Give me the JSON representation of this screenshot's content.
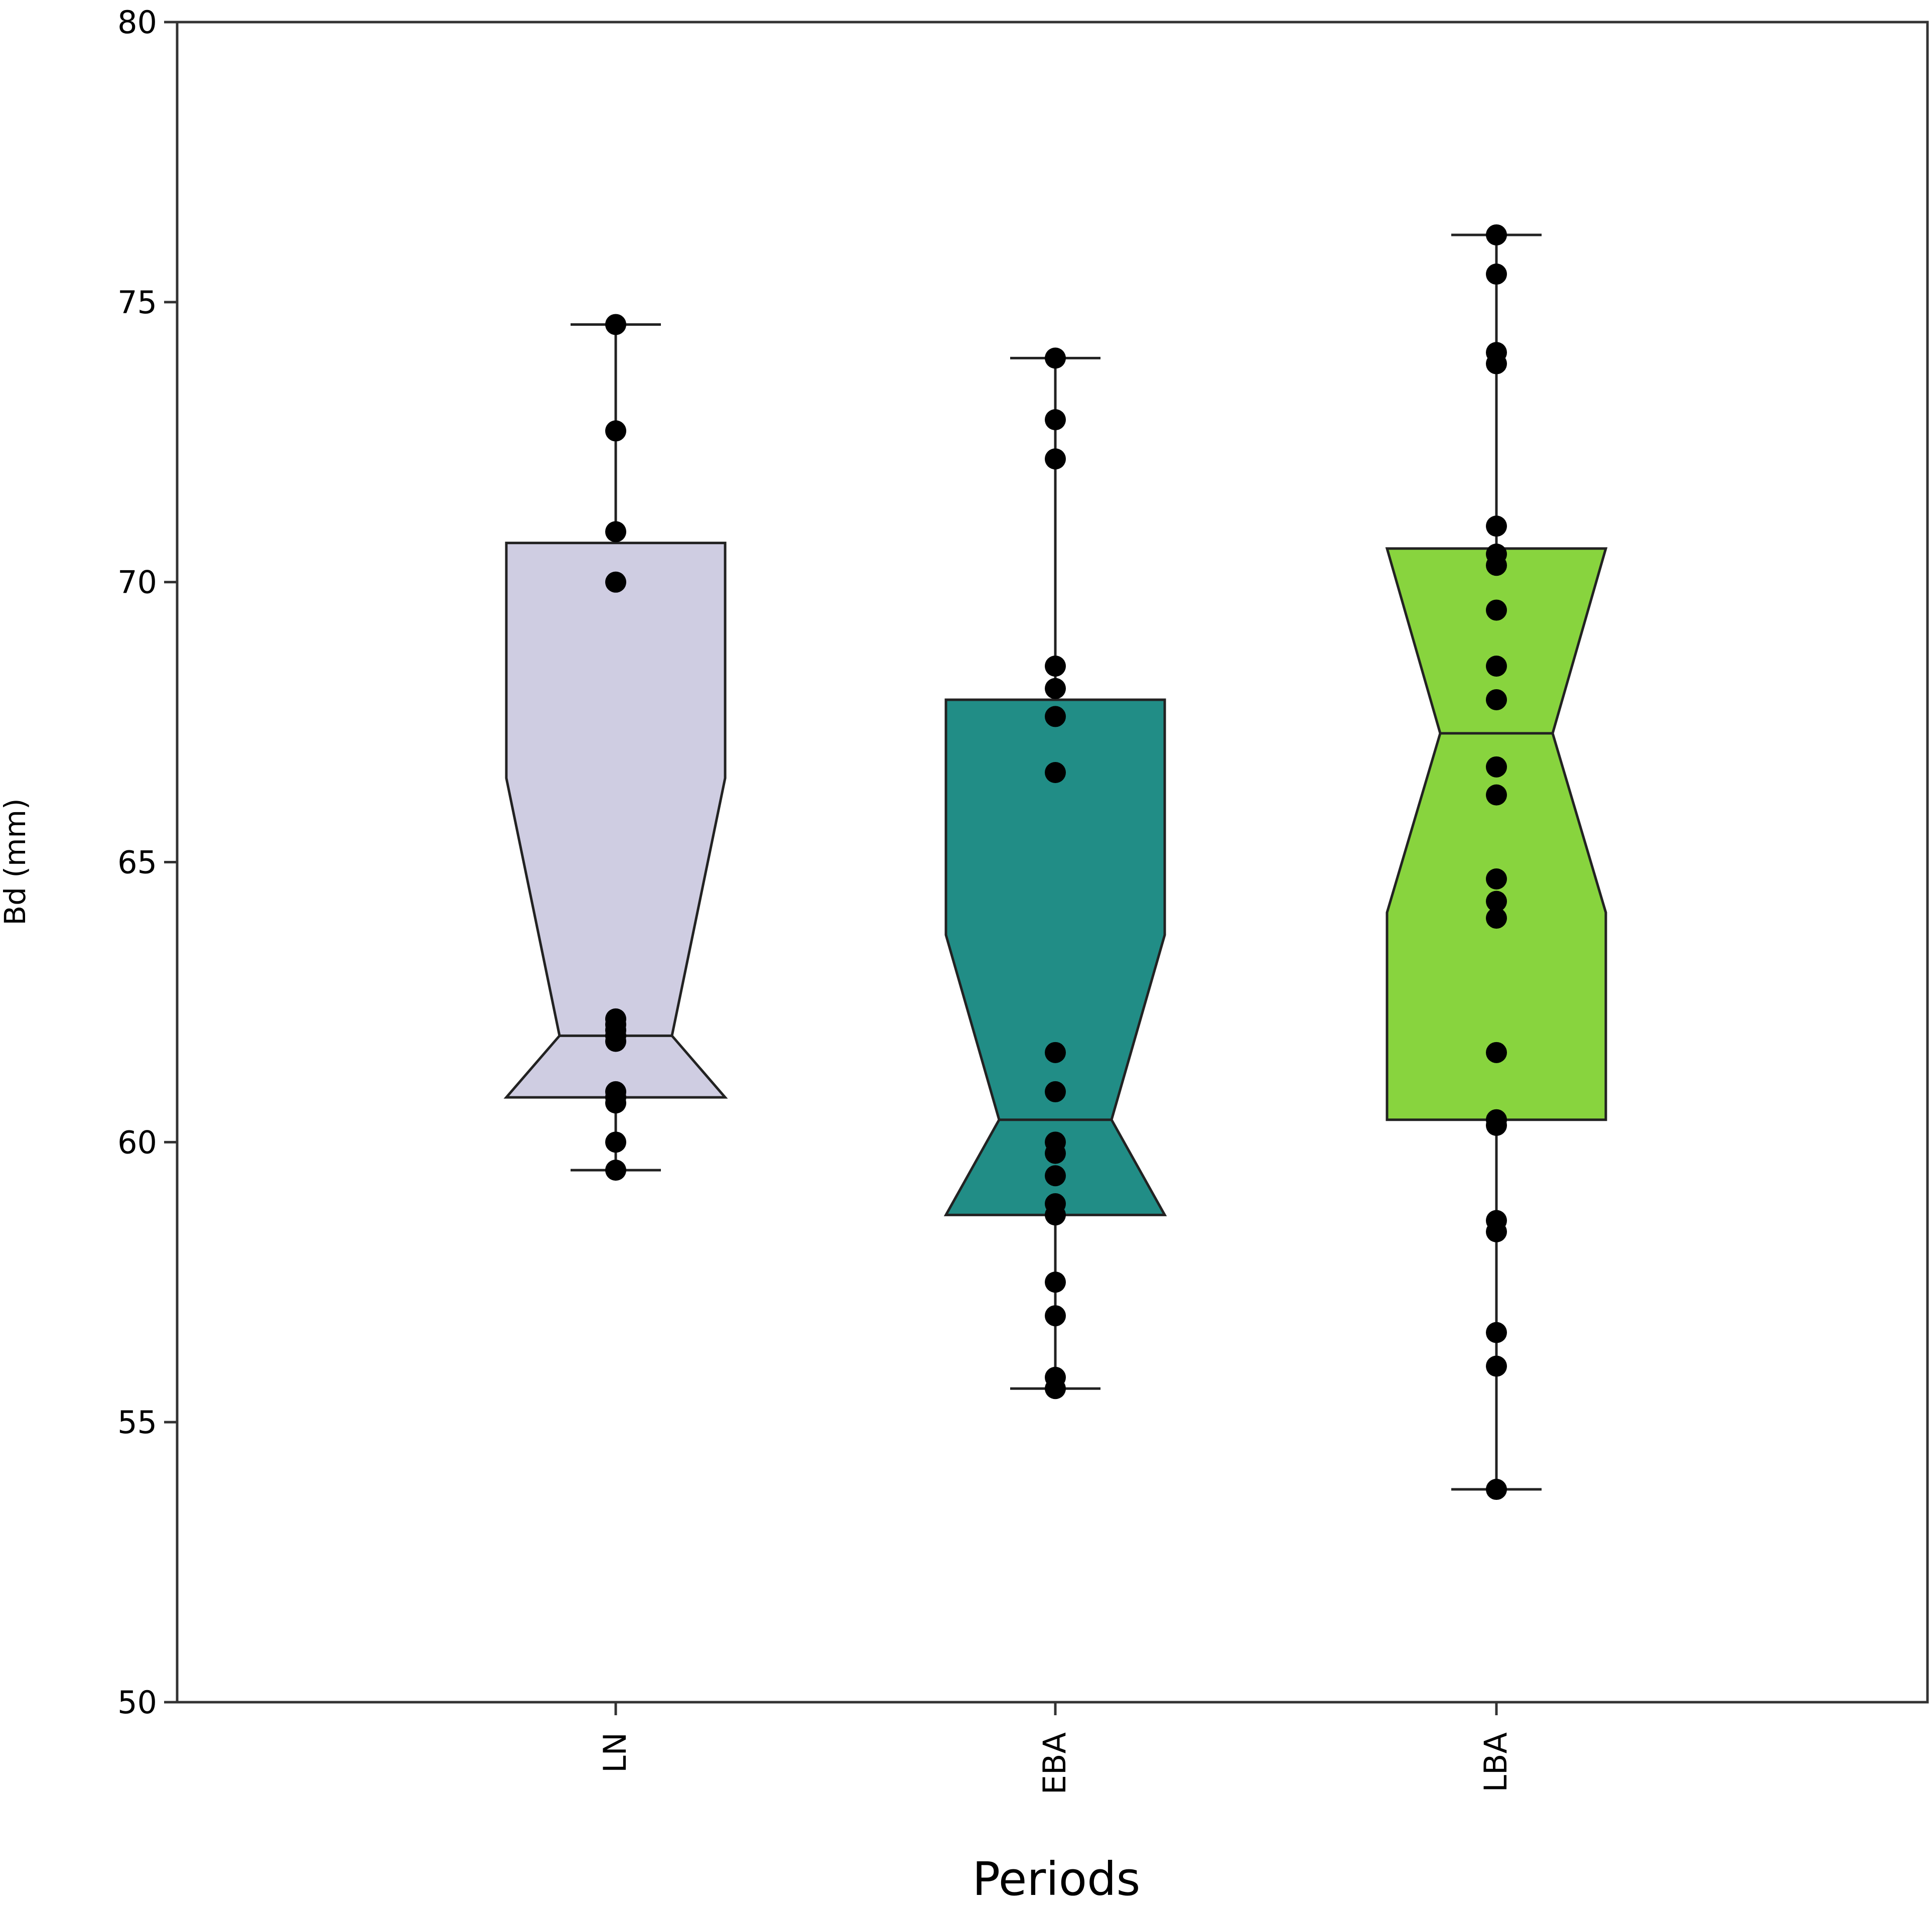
{
  "chart_data": {
    "type": "boxplot",
    "notched": true,
    "xlabel": "Periods",
    "ylabel": "Bd (mm)",
    "ylim": [
      50,
      80
    ],
    "yticks": [
      50,
      55,
      60,
      65,
      70,
      75,
      80
    ],
    "grid": false,
    "categories": [
      "LN",
      "EBA",
      "LBA"
    ],
    "boxes": [
      {
        "category": "LN",
        "color": "#cfcde2",
        "whisker_low": 59.5,
        "q1": 60.8,
        "median": 61.9,
        "q3": 70.7,
        "whisker_high": 74.6,
        "notch_low": 60.8,
        "notch_high": 66.5,
        "points": [
          74.6,
          72.7,
          70.9,
          70.0,
          62.2,
          62.1,
          62.0,
          61.9,
          61.8,
          60.9,
          60.8,
          60.7,
          60.0,
          59.5
        ]
      },
      {
        "category": "EBA",
        "color": "#218d86",
        "whisker_low": 55.6,
        "q1": 58.7,
        "median": 60.4,
        "q3": 67.9,
        "whisker_high": 74.0,
        "notch_low": 58.7,
        "notch_high": 63.7,
        "points": [
          74.0,
          72.9,
          72.2,
          68.5,
          68.1,
          67.6,
          66.6,
          61.6,
          60.9,
          60.0,
          59.8,
          59.4,
          58.9,
          58.7,
          57.5,
          56.9,
          55.8,
          55.6
        ]
      },
      {
        "category": "LBA",
        "color": "#88d43e",
        "whisker_low": 53.8,
        "q1": 60.4,
        "median": 67.3,
        "q3": 70.6,
        "whisker_high": 76.2,
        "notch_low": 64.1,
        "notch_high": 70.6,
        "points": [
          76.2,
          75.5,
          74.1,
          73.9,
          71.0,
          70.5,
          70.3,
          69.5,
          68.5,
          67.9,
          66.7,
          66.2,
          64.7,
          64.3,
          64.0,
          61.6,
          60.4,
          60.3,
          58.6,
          58.4,
          56.6,
          56.0,
          53.8
        ]
      }
    ]
  }
}
